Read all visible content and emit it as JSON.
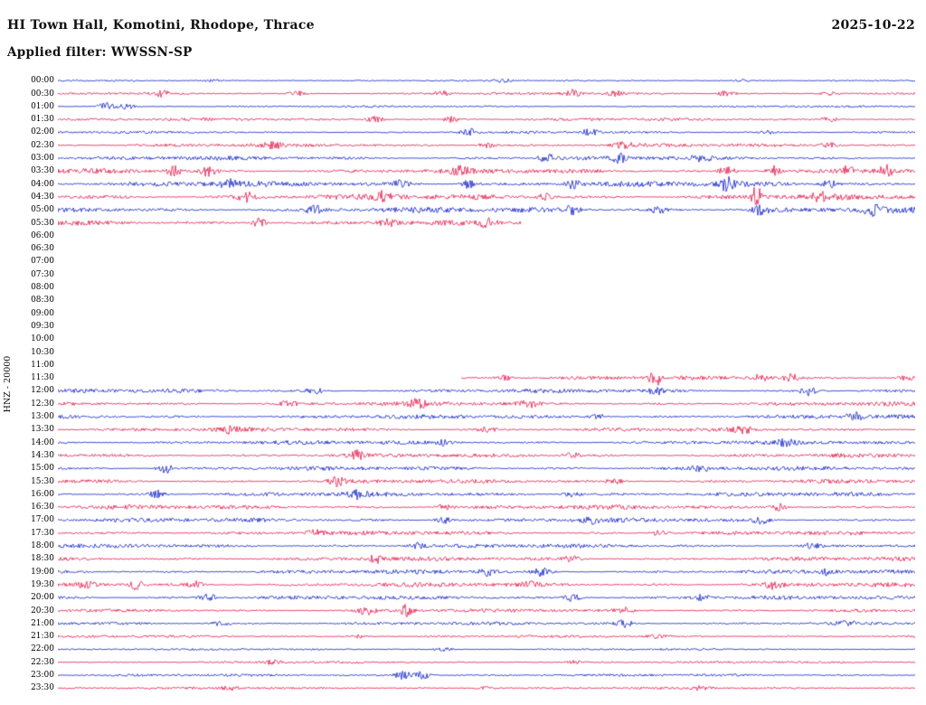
{
  "header": {
    "title": "HI Town Hall, Komotini, Rhodope, Thrace",
    "date": "2025-10-22",
    "filter": "Applied filter: WWSSN-SP"
  },
  "axis": {
    "left_label": "HNZ - 20000"
  },
  "chart_data": {
    "type": "line",
    "subtype": "helicorder-seismogram",
    "station": "HI Town Hall, Komotini, Rhodope, Thrace",
    "channel": "HNZ",
    "scale": "20000",
    "date": "2025-10-22",
    "filter": "WWSSN-SP",
    "minutes_per_row": 30,
    "row_count": 48,
    "background": "#ffffff",
    "colors": {
      "blue": "#1222c8",
      "red": "#e6194b"
    },
    "legend": "rows alternate blue/red every 30 minutes; data gap from ~05:46 to ~11:44",
    "rows": [
      {
        "time": "00:00",
        "color": "blue",
        "amp": 1.0,
        "bursts": [
          [
            0.18,
            1.5
          ],
          [
            0.52,
            1.5
          ],
          [
            0.8,
            1.2
          ]
        ]
      },
      {
        "time": "00:30",
        "color": "red",
        "amp": 1.5,
        "bursts": [
          [
            0.12,
            3
          ],
          [
            0.28,
            2.5
          ],
          [
            0.45,
            2.5
          ],
          [
            0.6,
            4.5
          ],
          [
            0.65,
            3
          ],
          [
            0.78,
            3.5
          ],
          [
            0.9,
            2
          ]
        ]
      },
      {
        "time": "01:00",
        "color": "blue",
        "amp": 1.2,
        "bursts": [
          [
            0.055,
            4.5
          ],
          [
            0.08,
            3
          ]
        ]
      },
      {
        "time": "01:30",
        "color": "red",
        "amp": 1.8,
        "bursts": [
          [
            0.37,
            3.5
          ],
          [
            0.46,
            3
          ],
          [
            0.9,
            2.5
          ]
        ]
      },
      {
        "time": "02:00",
        "color": "blue",
        "amp": 1.5,
        "bursts": [
          [
            0.48,
            4.5
          ],
          [
            0.62,
            3.5
          ],
          [
            0.83,
            2
          ]
        ]
      },
      {
        "time": "02:30",
        "color": "red",
        "amp": 2.2,
        "bursts": [
          [
            0.25,
            3
          ],
          [
            0.5,
            3
          ],
          [
            0.66,
            3.2
          ],
          [
            0.9,
            2.8
          ]
        ]
      },
      {
        "time": "03:00",
        "color": "blue",
        "amp": 2.5,
        "bursts": [
          [
            0.57,
            4.5
          ],
          [
            0.655,
            4
          ],
          [
            0.75,
            3
          ]
        ]
      },
      {
        "time": "03:30",
        "color": "red",
        "amp": 3.0,
        "bursts": [
          [
            0.135,
            6
          ],
          [
            0.175,
            5
          ],
          [
            0.47,
            4
          ],
          [
            0.78,
            5
          ],
          [
            0.835,
            6
          ],
          [
            0.92,
            5
          ],
          [
            0.965,
            6
          ]
        ]
      },
      {
        "time": "04:00",
        "color": "blue",
        "amp": 3.4,
        "bursts": [
          [
            0.2,
            4
          ],
          [
            0.4,
            6
          ],
          [
            0.48,
            5
          ],
          [
            0.6,
            5
          ],
          [
            0.78,
            6.5
          ],
          [
            0.9,
            4
          ]
        ]
      },
      {
        "time": "04:30",
        "color": "red",
        "amp": 3.4,
        "bursts": [
          [
            0.22,
            5
          ],
          [
            0.38,
            5
          ],
          [
            0.57,
            4
          ],
          [
            0.815,
            12
          ],
          [
            0.89,
            5
          ]
        ]
      },
      {
        "time": "05:00",
        "color": "blue",
        "amp": 3.4,
        "bursts": [
          [
            0.3,
            4
          ],
          [
            0.6,
            6
          ],
          [
            0.7,
            4
          ],
          [
            0.82,
            5
          ],
          [
            0.95,
            5
          ]
        ]
      },
      {
        "time": "05:30",
        "color": "red",
        "amp": 3.0,
        "end": 0.54,
        "bursts": [
          [
            0.235,
            5.5
          ],
          [
            0.385,
            4
          ],
          [
            0.5,
            4
          ]
        ]
      },
      {
        "time": "06:00",
        "color": "blue",
        "gap": true
      },
      {
        "time": "06:30",
        "color": "red",
        "gap": true
      },
      {
        "time": "07:00",
        "color": "blue",
        "gap": true
      },
      {
        "time": "07:30",
        "color": "red",
        "gap": true
      },
      {
        "time": "08:00",
        "color": "blue",
        "gap": true
      },
      {
        "time": "08:30",
        "color": "red",
        "gap": true
      },
      {
        "time": "09:00",
        "color": "blue",
        "gap": true
      },
      {
        "time": "09:30",
        "color": "red",
        "gap": true
      },
      {
        "time": "10:00",
        "color": "blue",
        "gap": true
      },
      {
        "time": "10:30",
        "color": "red",
        "gap": true
      },
      {
        "time": "11:00",
        "color": "blue",
        "gap": true
      },
      {
        "time": "11:30",
        "color": "red",
        "amp": 2.4,
        "start": 0.47,
        "bursts": [
          [
            0.52,
            3
          ],
          [
            0.697,
            8
          ],
          [
            0.82,
            4
          ],
          [
            0.855,
            4
          ],
          [
            0.99,
            3
          ]
        ]
      },
      {
        "time": "12:00",
        "color": "blue",
        "amp": 2.5,
        "bursts": [
          [
            0.3,
            3
          ],
          [
            0.7,
            4
          ],
          [
            0.875,
            5
          ]
        ]
      },
      {
        "time": "12:30",
        "color": "red",
        "amp": 2.5,
        "bursts": [
          [
            0.27,
            4
          ],
          [
            0.42,
            4
          ],
          [
            0.55,
            3
          ]
        ]
      },
      {
        "time": "13:00",
        "color": "blue",
        "amp": 2.5,
        "bursts": [
          [
            0.63,
            3
          ],
          [
            0.93,
            4
          ]
        ]
      },
      {
        "time": "13:30",
        "color": "red",
        "amp": 2.5,
        "bursts": [
          [
            0.2,
            3
          ],
          [
            0.5,
            3
          ],
          [
            0.8,
            3
          ]
        ]
      },
      {
        "time": "14:00",
        "color": "blue",
        "amp": 2.5,
        "bursts": [
          [
            0.45,
            3
          ],
          [
            0.85,
            3
          ]
        ]
      },
      {
        "time": "14:30",
        "color": "red",
        "amp": 2.5,
        "bursts": [
          [
            0.35,
            4.5
          ],
          [
            0.6,
            3
          ]
        ]
      },
      {
        "time": "15:00",
        "color": "blue",
        "amp": 2.5,
        "bursts": [
          [
            0.125,
            5
          ],
          [
            0.75,
            3
          ]
        ]
      },
      {
        "time": "15:30",
        "color": "red",
        "amp": 2.5,
        "bursts": [
          [
            0.325,
            4.5
          ],
          [
            0.65,
            3
          ]
        ]
      },
      {
        "time": "16:00",
        "color": "blue",
        "amp": 2.7,
        "bursts": [
          [
            0.115,
            4.5
          ],
          [
            0.35,
            4
          ],
          [
            0.6,
            3
          ]
        ]
      },
      {
        "time": "16:30",
        "color": "red",
        "amp": 2.7,
        "bursts": [
          [
            0.45,
            3
          ],
          [
            0.84,
            4.5
          ]
        ]
      },
      {
        "time": "17:00",
        "color": "blue",
        "amp": 2.7,
        "bursts": [
          [
            0.45,
            4
          ],
          [
            0.62,
            3
          ],
          [
            0.82,
            4
          ]
        ]
      },
      {
        "time": "17:30",
        "color": "red",
        "amp": 2.5,
        "bursts": [
          [
            0.3,
            3
          ],
          [
            0.7,
            3
          ]
        ]
      },
      {
        "time": "18:00",
        "color": "blue",
        "amp": 2.5,
        "bursts": [
          [
            0.42,
            3
          ],
          [
            0.88,
            3
          ]
        ]
      },
      {
        "time": "18:30",
        "color": "red",
        "amp": 2.5,
        "bursts": [
          [
            0.37,
            4.5
          ],
          [
            0.6,
            3
          ]
        ]
      },
      {
        "time": "19:00",
        "color": "blue",
        "amp": 2.5,
        "bursts": [
          [
            0.5,
            4.5
          ],
          [
            0.565,
            4.5
          ],
          [
            0.9,
            3
          ]
        ]
      },
      {
        "time": "19:30",
        "color": "red",
        "amp": 2.7,
        "bursts": [
          [
            0.035,
            4
          ],
          [
            0.09,
            5
          ],
          [
            0.16,
            4
          ],
          [
            0.55,
            3
          ],
          [
            0.835,
            5.5
          ]
        ]
      },
      {
        "time": "20:00",
        "color": "blue",
        "amp": 2.5,
        "bursts": [
          [
            0.175,
            5
          ],
          [
            0.6,
            5.5
          ],
          [
            0.75,
            3
          ]
        ]
      },
      {
        "time": "20:30",
        "color": "red",
        "amp": 2.2,
        "bursts": [
          [
            0.36,
            4.5
          ],
          [
            0.405,
            6.5
          ],
          [
            0.66,
            3
          ]
        ]
      },
      {
        "time": "21:00",
        "color": "blue",
        "amp": 2.0,
        "bursts": [
          [
            0.19,
            3
          ],
          [
            0.66,
            4.5
          ],
          [
            0.92,
            3
          ]
        ]
      },
      {
        "time": "21:30",
        "color": "red",
        "amp": 1.6,
        "bursts": [
          [
            0.35,
            2
          ],
          [
            0.7,
            2
          ]
        ]
      },
      {
        "time": "22:00",
        "color": "blue",
        "amp": 1.2,
        "bursts": [
          [
            0.45,
            2
          ]
        ]
      },
      {
        "time": "22:30",
        "color": "red",
        "amp": 1.4,
        "bursts": [
          [
            0.25,
            2
          ],
          [
            0.6,
            2
          ]
        ]
      },
      {
        "time": "23:00",
        "color": "blue",
        "amp": 1.6,
        "bursts": [
          [
            0.402,
            6.5
          ],
          [
            0.425,
            5
          ]
        ]
      },
      {
        "time": "23:30",
        "color": "red",
        "amp": 1.5,
        "bursts": [
          [
            0.2,
            2
          ],
          [
            0.5,
            2
          ],
          [
            0.75,
            2
          ]
        ]
      }
    ]
  }
}
